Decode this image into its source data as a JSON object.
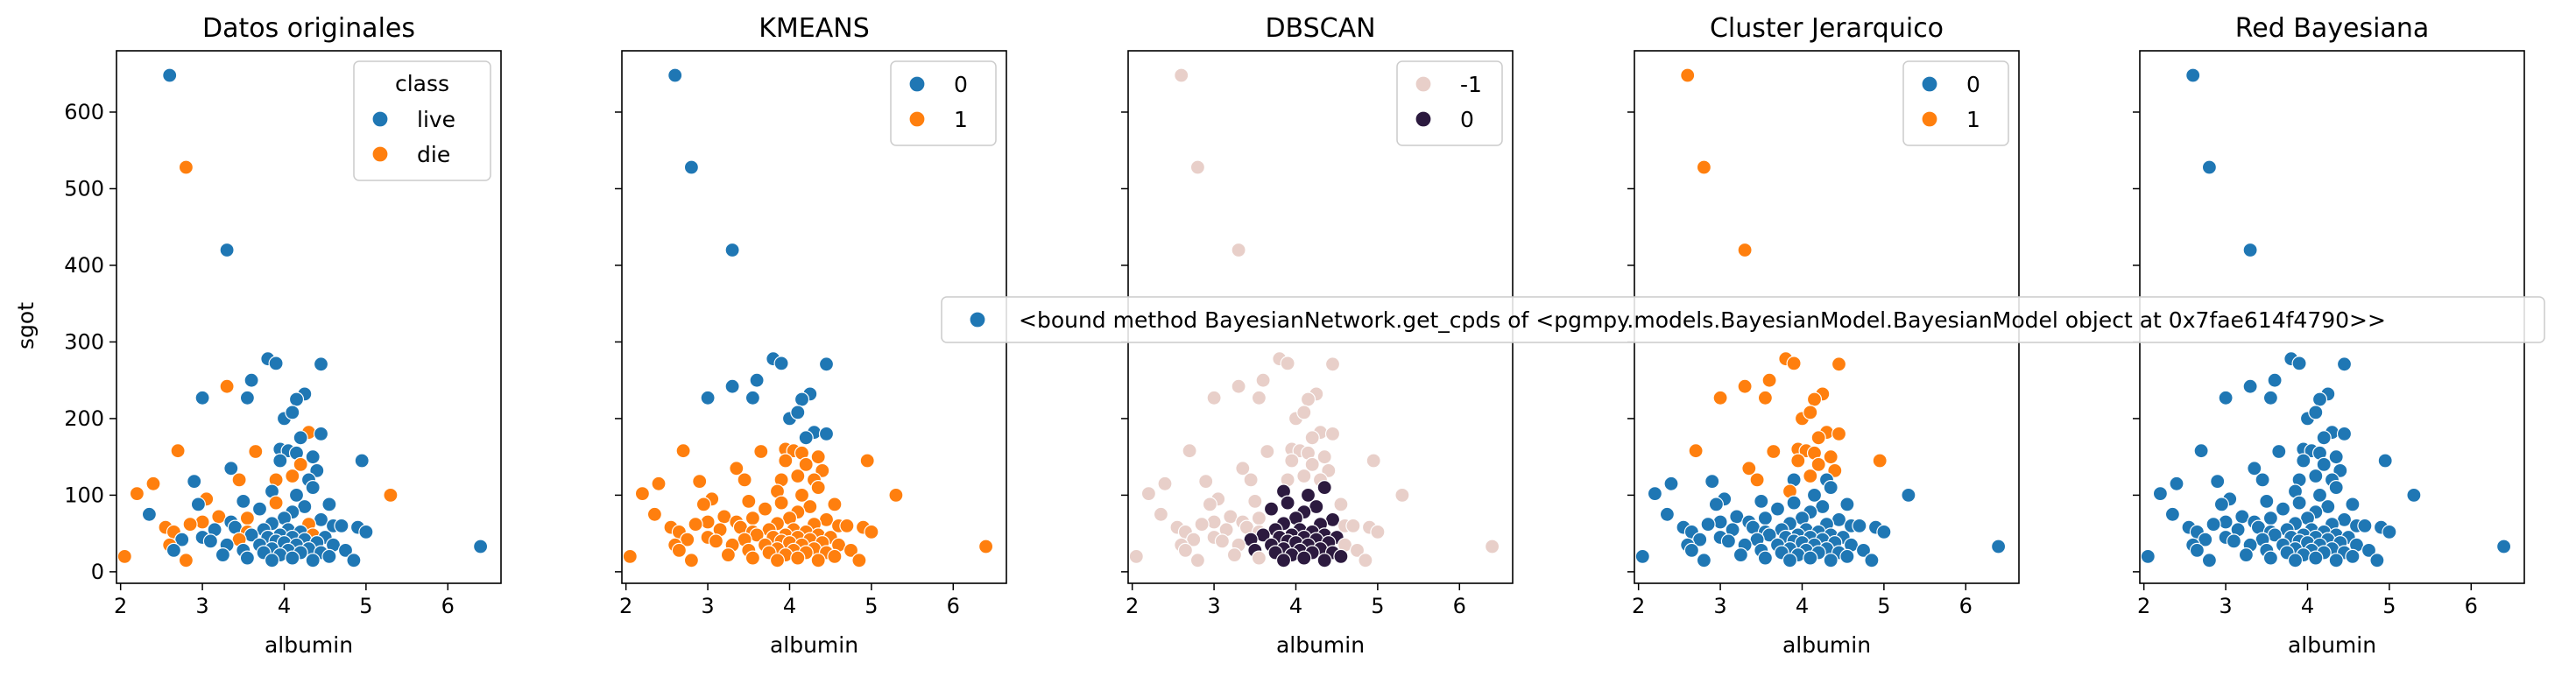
{
  "figure": {
    "xlabel": "albumin",
    "ylabel": "sgot",
    "xlim": [
      1.95,
      6.65
    ],
    "ylim": [
      -15,
      680
    ],
    "xticks": [
      2,
      3,
      4,
      5,
      6
    ],
    "yticks": [
      0,
      100,
      200,
      300,
      400,
      500,
      600
    ],
    "long_legend_text": "<bound method BayesianNetwork.get_cpds of <pgmpy.models.BayesianModel.BayesianModel object at 0x7fae614f4790>>"
  },
  "colors": {
    "blue": "#1f77b4",
    "orange": "#ff7f0e",
    "pink": "#e8cfc9",
    "dark": "#2c1a3f"
  },
  "chart_data": [
    {
      "type": "scatter",
      "title": "Datos originales",
      "legend_title": "class",
      "legend": [
        {
          "label": "live",
          "color": "#1f77b4"
        },
        {
          "label": "die",
          "color": "#ff7f0e"
        }
      ],
      "legend_position": "top-right",
      "coloring": "class"
    },
    {
      "type": "scatter",
      "title": "KMEANS",
      "legend_title": "",
      "legend": [
        {
          "label": "0",
          "color": "#1f77b4"
        },
        {
          "label": "1",
          "color": "#ff7f0e"
        }
      ],
      "legend_position": "top-right",
      "coloring": "kmeans"
    },
    {
      "type": "scatter",
      "title": "DBSCAN",
      "legend_title": "",
      "legend": [
        {
          "label": "-1",
          "color": "#e8cfc9"
        },
        {
          "label": "0",
          "color": "#2c1a3f"
        }
      ],
      "legend_position": "top-right",
      "coloring": "dbscan"
    },
    {
      "type": "scatter",
      "title": "Cluster Jerarquico",
      "legend_title": "",
      "legend": [
        {
          "label": "0",
          "color": "#1f77b4"
        },
        {
          "label": "1",
          "color": "#ff7f0e"
        }
      ],
      "legend_position": "top-right",
      "coloring": "hier"
    },
    {
      "type": "scatter",
      "title": "Red Bayesiana",
      "legend_title": "",
      "legend": [
        {
          "label": "<bound method BayesianNetwork.get_cpds of <pgmpy.models.BayesianModel.BayesianModel object at 0x7fae614f4790>>",
          "color": "#1f77b4"
        }
      ],
      "legend_position": "center-right",
      "coloring": "bayes"
    }
  ],
  "points": {
    "fields": [
      "albumin",
      "sgot",
      "class",
      "kmeans",
      "dbscan",
      "hier"
    ],
    "rows": [
      [
        2.6,
        648,
        "live",
        0,
        -1,
        1
      ],
      [
        2.8,
        528,
        "die",
        0,
        -1,
        1
      ],
      [
        3.3,
        420,
        "live",
        0,
        -1,
        1
      ],
      [
        3.8,
        278,
        "live",
        0,
        -1,
        1
      ],
      [
        3.9,
        272,
        "live",
        0,
        -1,
        1
      ],
      [
        4.45,
        271,
        "live",
        0,
        -1,
        1
      ],
      [
        3.3,
        242,
        "die",
        0,
        -1,
        1
      ],
      [
        3.6,
        250,
        "live",
        0,
        -1,
        1
      ],
      [
        3.0,
        227,
        "live",
        0,
        -1,
        1
      ],
      [
        3.55,
        227,
        "live",
        0,
        -1,
        1
      ],
      [
        4.25,
        232,
        "live",
        0,
        -1,
        1
      ],
      [
        4.15,
        225,
        "live",
        0,
        -1,
        1
      ],
      [
        4.0,
        200,
        "live",
        0,
        -1,
        1
      ],
      [
        4.1,
        208,
        "live",
        0,
        -1,
        1
      ],
      [
        4.3,
        182,
        "die",
        0,
        -1,
        1
      ],
      [
        4.45,
        180,
        "live",
        0,
        -1,
        1
      ],
      [
        4.2,
        175,
        "live",
        0,
        -1,
        1
      ],
      [
        3.95,
        160,
        "live",
        1,
        -1,
        1
      ],
      [
        4.05,
        158,
        "live",
        1,
        -1,
        1
      ],
      [
        4.15,
        155,
        "live",
        1,
        -1,
        1
      ],
      [
        3.65,
        157,
        "die",
        1,
        -1,
        1
      ],
      [
        2.7,
        158,
        "die",
        1,
        -1,
        1
      ],
      [
        3.95,
        145,
        "live",
        1,
        -1,
        1
      ],
      [
        4.35,
        150,
        "live",
        1,
        -1,
        1
      ],
      [
        4.95,
        145,
        "live",
        1,
        -1,
        1
      ],
      [
        4.2,
        140,
        "die",
        1,
        -1,
        1
      ],
      [
        3.35,
        135,
        "live",
        1,
        -1,
        1
      ],
      [
        4.4,
        132,
        "live",
        1,
        -1,
        1
      ],
      [
        4.1,
        125,
        "die",
        1,
        -1,
        1
      ],
      [
        3.45,
        120,
        "die",
        1,
        -1,
        1
      ],
      [
        2.9,
        118,
        "live",
        1,
        -1,
        0
      ],
      [
        2.4,
        115,
        "die",
        1,
        -1,
        0
      ],
      [
        3.9,
        120,
        "die",
        1,
        -1,
        0
      ],
      [
        4.3,
        120,
        "live",
        1,
        -1,
        0
      ],
      [
        4.35,
        110,
        "live",
        1,
        0,
        0
      ],
      [
        3.85,
        105,
        "live",
        1,
        0,
        1
      ],
      [
        2.2,
        102,
        "die",
        1,
        -1,
        0
      ],
      [
        5.3,
        100,
        "die",
        1,
        -1,
        0
      ],
      [
        4.15,
        100,
        "live",
        1,
        0,
        0
      ],
      [
        3.05,
        95,
        "die",
        1,
        -1,
        0
      ],
      [
        3.5,
        92,
        "live",
        1,
        -1,
        0
      ],
      [
        2.95,
        88,
        "live",
        1,
        -1,
        0
      ],
      [
        3.9,
        90,
        "die",
        1,
        0,
        0
      ],
      [
        4.25,
        85,
        "live",
        1,
        0,
        0
      ],
      [
        4.55,
        88,
        "live",
        1,
        -1,
        0
      ],
      [
        3.7,
        82,
        "live",
        1,
        0,
        0
      ],
      [
        4.1,
        78,
        "live",
        1,
        0,
        0
      ],
      [
        2.35,
        75,
        "live",
        1,
        -1,
        0
      ],
      [
        3.2,
        72,
        "die",
        1,
        -1,
        0
      ],
      [
        3.55,
        70,
        "die",
        1,
        -1,
        0
      ],
      [
        4.0,
        70,
        "live",
        1,
        0,
        0
      ],
      [
        4.45,
        68,
        "live",
        1,
        0,
        0
      ],
      [
        3.0,
        65,
        "die",
        1,
        -1,
        0
      ],
      [
        3.35,
        65,
        "live",
        1,
        -1,
        0
      ],
      [
        3.85,
        63,
        "live",
        1,
        0,
        0
      ],
      [
        2.85,
        62,
        "die",
        1,
        -1,
        0
      ],
      [
        4.3,
        62,
        "die",
        1,
        0,
        0
      ],
      [
        4.6,
        60,
        "live",
        1,
        -1,
        0
      ],
      [
        4.7,
        60,
        "live",
        1,
        -1,
        0
      ],
      [
        2.55,
        58,
        "die",
        1,
        -1,
        0
      ],
      [
        3.4,
        58,
        "live",
        1,
        -1,
        0
      ],
      [
        4.9,
        58,
        "live",
        1,
        -1,
        0
      ],
      [
        3.15,
        55,
        "live",
        1,
        -1,
        0
      ],
      [
        3.75,
        55,
        "live",
        1,
        0,
        0
      ],
      [
        4.05,
        55,
        "live",
        1,
        0,
        0
      ],
      [
        2.65,
        52,
        "die",
        1,
        -1,
        0
      ],
      [
        3.55,
        52,
        "die",
        1,
        -1,
        0
      ],
      [
        4.2,
        52,
        "live",
        1,
        0,
        0
      ],
      [
        5.0,
        52,
        "live",
        1,
        -1,
        0
      ],
      [
        3.6,
        48,
        "live",
        1,
        0,
        0
      ],
      [
        3.95,
        48,
        "live",
        1,
        0,
        0
      ],
      [
        4.35,
        48,
        "die",
        1,
        0,
        0
      ],
      [
        3.0,
        45,
        "live",
        1,
        -1,
        0
      ],
      [
        3.8,
        45,
        "live",
        1,
        0,
        0
      ],
      [
        4.1,
        45,
        "live",
        1,
        0,
        0
      ],
      [
        4.5,
        45,
        "live",
        1,
        0,
        0
      ],
      [
        2.75,
        42,
        "live",
        1,
        -1,
        0
      ],
      [
        3.45,
        42,
        "die",
        1,
        0,
        0
      ],
      [
        4.25,
        42,
        "live",
        1,
        0,
        0
      ],
      [
        3.9,
        40,
        "live",
        1,
        0,
        0
      ],
      [
        3.1,
        40,
        "live",
        1,
        -1,
        0
      ],
      [
        4.0,
        38,
        "live",
        1,
        0,
        0
      ],
      [
        4.4,
        38,
        "live",
        1,
        0,
        0
      ],
      [
        2.6,
        35,
        "die",
        1,
        -1,
        0
      ],
      [
        3.3,
        35,
        "live",
        1,
        -1,
        0
      ],
      [
        3.7,
        35,
        "live",
        1,
        0,
        0
      ],
      [
        4.15,
        35,
        "live",
        1,
        0,
        0
      ],
      [
        4.6,
        35,
        "live",
        1,
        -1,
        0
      ],
      [
        6.4,
        33,
        "live",
        1,
        -1,
        0
      ],
      [
        3.85,
        30,
        "live",
        1,
        0,
        0
      ],
      [
        4.3,
        30,
        "live",
        1,
        0,
        0
      ],
      [
        2.65,
        28,
        "live",
        1,
        -1,
        0
      ],
      [
        3.5,
        28,
        "live",
        1,
        0,
        0
      ],
      [
        4.05,
        28,
        "live",
        1,
        0,
        0
      ],
      [
        4.75,
        28,
        "live",
        1,
        -1,
        0
      ],
      [
        3.75,
        25,
        "live",
        1,
        0,
        0
      ],
      [
        4.2,
        25,
        "live",
        1,
        0,
        0
      ],
      [
        4.45,
        25,
        "live",
        1,
        0,
        0
      ],
      [
        3.25,
        22,
        "live",
        1,
        -1,
        0
      ],
      [
        3.95,
        22,
        "live",
        1,
        0,
        0
      ],
      [
        2.05,
        20,
        "die",
        1,
        -1,
        0
      ],
      [
        4.55,
        20,
        "live",
        1,
        0,
        0
      ],
      [
        4.1,
        18,
        "live",
        1,
        0,
        0
      ],
      [
        3.55,
        18,
        "live",
        1,
        -1,
        0
      ],
      [
        2.8,
        15,
        "die",
        1,
        -1,
        0
      ],
      [
        4.35,
        15,
        "live",
        1,
        0,
        0
      ],
      [
        3.85,
        15,
        "live",
        1,
        0,
        0
      ],
      [
        4.85,
        15,
        "live",
        1,
        -1,
        0
      ]
    ]
  }
}
